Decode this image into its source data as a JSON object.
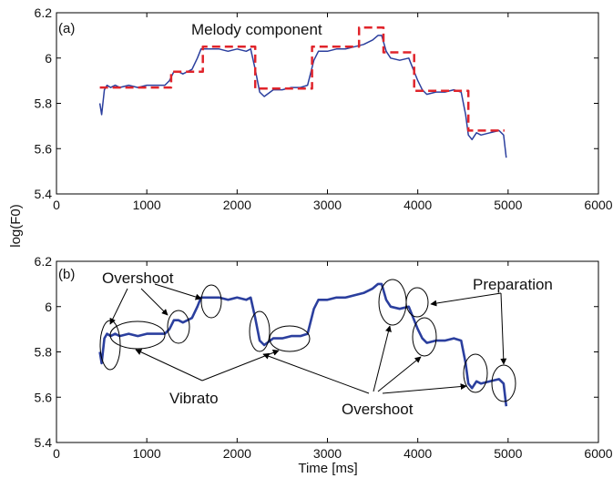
{
  "chart_data": [
    {
      "type": "line",
      "panel_label": "(a)",
      "xlabel": "",
      "ylabel": "log(F0)",
      "xlim": [
        0,
        6000
      ],
      "ylim": [
        5.4,
        6.2
      ],
      "xticks": [
        "0",
        "1000",
        "2000",
        "3000",
        "4000",
        "5000",
        "6000"
      ],
      "yticks": [
        "5.4",
        "5.6",
        "5.8",
        "6",
        "6.2"
      ],
      "grid": false,
      "annotation": "Melody component",
      "series": [
        {
          "color": "#2b3f9e",
          "style": "solid",
          "x": [
            480,
            500,
            530,
            560,
            600,
            650,
            700,
            800,
            900,
            1000,
            1100,
            1200,
            1250,
            1300,
            1350,
            1400,
            1500,
            1560,
            1600,
            1650,
            1700,
            1800,
            1900,
            2000,
            2100,
            2150,
            2200,
            2250,
            2300,
            2400,
            2500,
            2600,
            2700,
            2780,
            2850,
            2900,
            3000,
            3100,
            3200,
            3300,
            3400,
            3500,
            3560,
            3600,
            3650,
            3700,
            3800,
            3900,
            3950,
            4000,
            4050,
            4100,
            4200,
            4300,
            4400,
            4480,
            4530,
            4560,
            4600,
            4650,
            4700,
            4800,
            4900,
            4950,
            4980
          ],
          "y": [
            5.8,
            5.75,
            5.86,
            5.88,
            5.87,
            5.88,
            5.87,
            5.88,
            5.87,
            5.88,
            5.88,
            5.88,
            5.9,
            5.94,
            5.94,
            5.93,
            5.95,
            6.0,
            6.04,
            6.04,
            6.04,
            6.04,
            6.03,
            6.04,
            6.03,
            6.04,
            5.95,
            5.85,
            5.83,
            5.86,
            5.86,
            5.87,
            5.87,
            5.88,
            5.99,
            6.03,
            6.03,
            6.04,
            6.04,
            6.05,
            6.06,
            6.08,
            6.1,
            6.1,
            6.03,
            6.0,
            5.99,
            6.0,
            5.95,
            5.9,
            5.86,
            5.84,
            5.85,
            5.85,
            5.86,
            5.85,
            5.75,
            5.66,
            5.64,
            5.67,
            5.66,
            5.67,
            5.68,
            5.66,
            5.56
          ]
        },
        {
          "color": "#e0242b",
          "style": "dashed",
          "x": [
            480,
            1270,
            1270,
            1620,
            1620,
            2200,
            2200,
            2830,
            2830,
            3350,
            3350,
            3620,
            3620,
            3960,
            3960,
            4560,
            4560,
            4960
          ],
          "y": [
            5.87,
            5.87,
            5.94,
            5.94,
            6.05,
            6.05,
            5.865,
            5.865,
            6.05,
            6.05,
            6.135,
            6.135,
            6.025,
            6.025,
            5.855,
            5.855,
            5.68,
            5.68
          ]
        }
      ]
    },
    {
      "type": "line",
      "panel_label": "(b)",
      "xlabel": "Time [ms]",
      "ylabel": "",
      "xlim": [
        0,
        6000
      ],
      "ylim": [
        5.4,
        6.2
      ],
      "xticks": [
        "0",
        "1000",
        "2000",
        "3000",
        "4000",
        "5000",
        "6000"
      ],
      "yticks": [
        "5.4",
        "5.6",
        "5.8",
        "6",
        "6.2"
      ],
      "grid": false,
      "annotations": {
        "overshoot_top": "Overshoot",
        "vibrato": "Vibrato",
        "overshoot_bottom": "Overshoot",
        "preparation": "Preparation"
      },
      "series": [
        {
          "color": "#2b3f9e",
          "style": "solid",
          "x": [
            480,
            500,
            530,
            560,
            600,
            650,
            700,
            800,
            900,
            1000,
            1100,
            1200,
            1250,
            1300,
            1350,
            1400,
            1500,
            1560,
            1600,
            1650,
            1700,
            1800,
            1900,
            2000,
            2100,
            2150,
            2200,
            2250,
            2300,
            2400,
            2500,
            2600,
            2700,
            2780,
            2850,
            2900,
            3000,
            3100,
            3200,
            3300,
            3400,
            3500,
            3560,
            3600,
            3650,
            3700,
            3800,
            3900,
            3950,
            4000,
            4050,
            4100,
            4200,
            4300,
            4400,
            4480,
            4530,
            4560,
            4600,
            4650,
            4700,
            4800,
            4900,
            4950,
            4980
          ],
          "y": [
            5.8,
            5.75,
            5.86,
            5.88,
            5.87,
            5.88,
            5.87,
            5.88,
            5.87,
            5.88,
            5.88,
            5.88,
            5.9,
            5.94,
            5.94,
            5.93,
            5.95,
            6.0,
            6.04,
            6.04,
            6.04,
            6.04,
            6.03,
            6.04,
            6.03,
            6.04,
            5.95,
            5.85,
            5.83,
            5.86,
            5.86,
            5.87,
            5.87,
            5.88,
            5.99,
            6.03,
            6.03,
            6.04,
            6.04,
            6.05,
            6.06,
            6.08,
            6.1,
            6.1,
            6.03,
            6.0,
            5.99,
            6.0,
            5.95,
            5.9,
            5.86,
            5.84,
            5.85,
            5.85,
            5.86,
            5.85,
            5.75,
            5.66,
            5.64,
            5.67,
            5.66,
            5.67,
            5.68,
            5.66,
            5.56
          ]
        }
      ]
    }
  ],
  "colors": {
    "f0_curve": "#2b3f9e",
    "melody_component": "#e0242b"
  }
}
